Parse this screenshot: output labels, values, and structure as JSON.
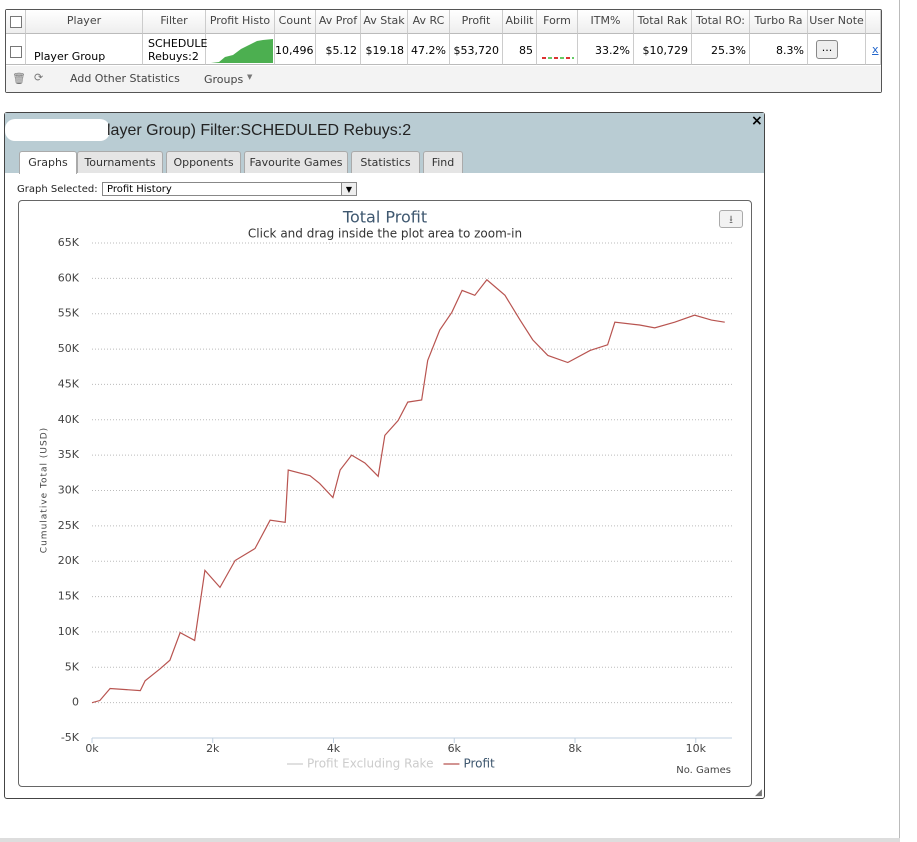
{
  "table": {
    "headers": [
      "Player",
      "Filter",
      "Profit Histo",
      "Count",
      "Av Prof",
      "Av Stak",
      "Av RC",
      "Profit",
      "Abilit",
      "Form",
      "ITM%",
      "Total Rak",
      "Total RO:",
      "Turbo Ra",
      "User Note"
    ],
    "row": {
      "player": "Player Group",
      "filter": [
        "SCHEDULE",
        "Rebuys:2"
      ],
      "count": "10,496",
      "av_profit": "$5.12",
      "av_stake": "$19.18",
      "av_roi": "47.2%",
      "profit": "$53,720",
      "ability": "85",
      "itm": "33.2%",
      "total_rake": "$10,729",
      "total_roi": "25.3%",
      "turbo_ratio": "8.3%",
      "notes_button": "...",
      "remove": "x"
    },
    "toolbar": [
      "Add Other Statistics",
      "Groups"
    ]
  },
  "dialog": {
    "title": "layer Group) Filter:SCHEDULED Rebuys:2",
    "close": "×",
    "tabs": [
      "Graphs",
      "Tournaments",
      "Opponents",
      "Favourite Games",
      "Statistics",
      "Find"
    ],
    "graph_selected_label": "Graph Selected:",
    "graph_selected_value": "Profit History"
  },
  "chart_data": {
    "type": "line",
    "title": "Total Profit",
    "subtitle": "Click and drag inside the plot area to zoom-in",
    "y_label": "Cumulative Total (USD)",
    "x_label": "No. Games",
    "grid": true,
    "xlim": [
      0,
      10600
    ],
    "ylim": [
      -5000,
      65000
    ],
    "xticks": [
      {
        "value": 0,
        "label": "0k"
      },
      {
        "value": 2000,
        "label": "2k"
      },
      {
        "value": 4000,
        "label": "4k"
      },
      {
        "value": 6000,
        "label": "6k"
      },
      {
        "value": 8000,
        "label": "8k"
      },
      {
        "value": 10000,
        "label": "10k"
      }
    ],
    "yticks": [
      {
        "value": -5000,
        "label": "-5K"
      },
      0,
      {
        "value": 5000,
        "label": "5K"
      },
      {
        "value": 10000,
        "label": "10K"
      },
      {
        "value": 15000,
        "label": "15K"
      },
      {
        "value": 20000,
        "label": "20K"
      },
      {
        "value": 25000,
        "label": "25K"
      },
      {
        "value": 30000,
        "label": "30K"
      },
      {
        "value": 35000,
        "label": "35K"
      },
      {
        "value": 40000,
        "label": "40K"
      },
      {
        "value": 45000,
        "label": "45K"
      },
      {
        "value": 50000,
        "label": "50K"
      },
      {
        "value": 55000,
        "label": "55K"
      },
      {
        "value": 60000,
        "label": "60K"
      },
      {
        "value": 65000,
        "label": "65K"
      }
    ],
    "x": [
      0,
      130,
      300,
      800,
      880,
      1130,
      1290,
      1460,
      1700,
      1870,
      2120,
      2370,
      2700,
      2950,
      3200,
      3250,
      3610,
      3770,
      3990,
      4110,
      4300,
      4520,
      4740,
      4850,
      5070,
      5230,
      5460,
      5560,
      5760,
      5960,
      6130,
      6340,
      6540,
      6840,
      7090,
      7300,
      7550,
      7880,
      8250,
      8540,
      8660,
      9070,
      9320,
      9650,
      9980,
      10260,
      10480
    ],
    "series": [
      {
        "name": "Profit Excluding Rake",
        "color": "#cccccc",
        "visible": false
      },
      {
        "name": "Profit",
        "color": "#b85450",
        "visible": true,
        "values": [
          0,
          300,
          2000,
          1700,
          3100,
          4800,
          6000,
          9900,
          8800,
          18700,
          16300,
          20100,
          21800,
          25800,
          25500,
          32900,
          32100,
          31000,
          29000,
          32900,
          35000,
          33900,
          32000,
          37800,
          39900,
          42500,
          42800,
          48400,
          52700,
          55200,
          58300,
          57600,
          59800,
          57600,
          54100,
          51300,
          49100,
          48100,
          49800,
          50600,
          53800,
          53400,
          53000,
          53800,
          54800,
          54100,
          53800
        ]
      }
    ]
  }
}
